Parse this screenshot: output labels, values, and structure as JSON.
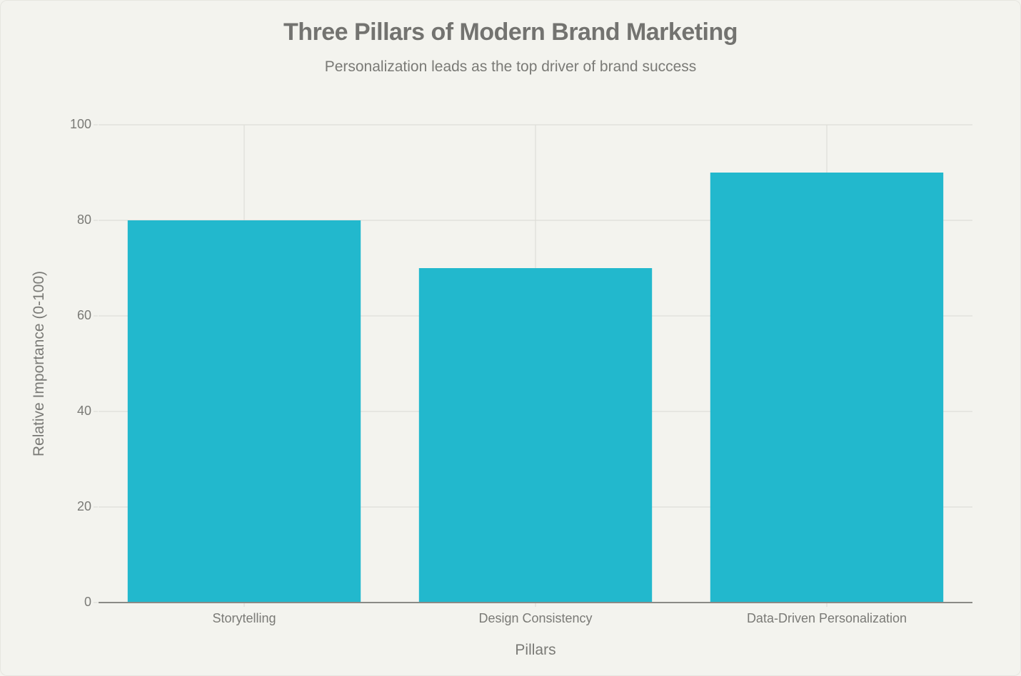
{
  "chart": {
    "title": "Three Pillars of Modern Brand Marketing",
    "subtitle": "Personalization leads as the top driver of brand success",
    "xlabel": "Pillars",
    "ylabel": "Relative Importance (0-100)",
    "yticks": [
      "0",
      "20",
      "40",
      "60",
      "80",
      "100"
    ],
    "categories": [
      "Storytelling",
      "Design Consistency",
      "Data-Driven Personalization"
    ]
  },
  "colors": {
    "background": "#F3F3EE",
    "bar": "#22B8CD",
    "grid": "#D9D9D4",
    "axis": "#8A8A86",
    "text": "#7A7A76",
    "title": "#737370"
  },
  "chart_data": {
    "type": "bar",
    "title": "Three Pillars of Modern Brand Marketing",
    "subtitle": "Personalization leads as the top driver of brand success",
    "categories": [
      "Storytelling",
      "Design Consistency",
      "Data-Driven Personalization"
    ],
    "values": [
      80,
      70,
      90
    ],
    "xlabel": "Pillars",
    "ylabel": "Relative Importance (0-100)",
    "ylim": [
      0,
      100
    ],
    "yticks": [
      0,
      20,
      40,
      60,
      80,
      100
    ],
    "grid": true,
    "legend": "none",
    "bar_color": "#22B8CD"
  }
}
